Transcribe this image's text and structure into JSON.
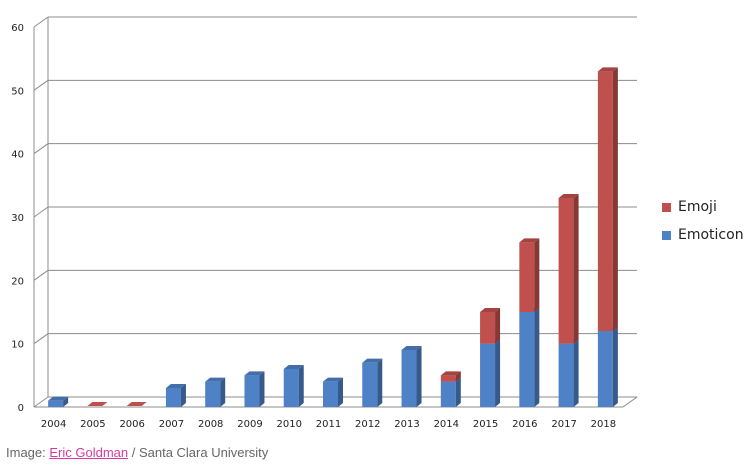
{
  "chart_data": {
    "type": "bar",
    "stacked": true,
    "style": "3d-column",
    "categories": [
      "2004",
      "2005",
      "2006",
      "2007",
      "2008",
      "2009",
      "2010",
      "2011",
      "2012",
      "2013",
      "2014",
      "2015",
      "2016",
      "2017",
      "2018"
    ],
    "series": [
      {
        "name": "Emoticon",
        "color": "#4f81c7",
        "values": [
          1,
          0,
          0,
          3,
          4,
          5,
          6,
          4,
          7,
          9,
          4,
          10,
          15,
          10,
          12
        ]
      },
      {
        "name": "Emoji",
        "color": "#c0504d",
        "values": [
          0,
          0,
          0,
          0,
          0,
          0,
          0,
          0,
          0,
          0,
          1,
          5,
          11,
          23,
          41
        ]
      }
    ],
    "y_ticks": [
      0,
      10,
      20,
      30,
      40,
      50,
      60
    ],
    "ylim": [
      0,
      60
    ],
    "grid": true,
    "legend_position": "right"
  },
  "legend": [
    {
      "label": "Emoji",
      "color": "#c0504d"
    },
    {
      "label": "Emoticon",
      "color": "#4f81c7"
    }
  ],
  "caption": {
    "prefix": "Image: ",
    "link_text": "Eric Goldman",
    "suffix": " / Santa Clara University"
  }
}
